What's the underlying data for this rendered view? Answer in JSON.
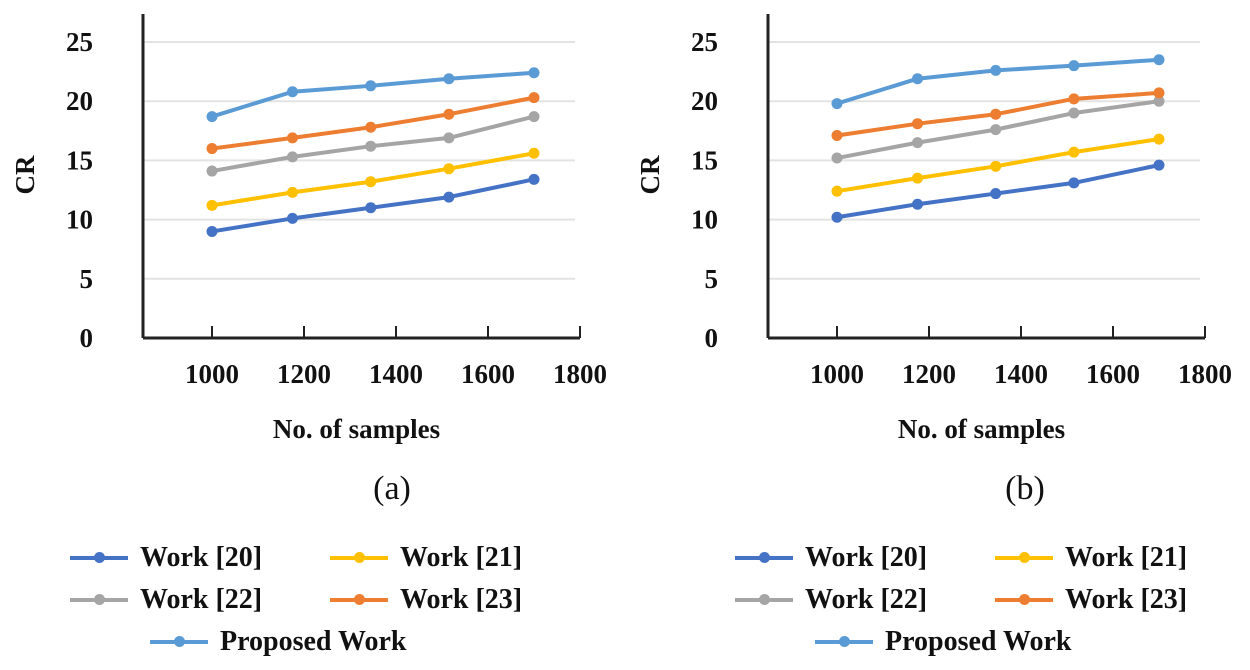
{
  "chart_data": [
    {
      "type": "line",
      "panel_label": "(a)",
      "xlabel": "No. of samples",
      "ylabel": "CR",
      "xlim": [
        850,
        1800
      ],
      "ylim": [
        0,
        25
      ],
      "xticks": [
        1000,
        1200,
        1400,
        1600,
        1800
      ],
      "yticks": [
        0,
        5,
        10,
        15,
        20,
        25
      ],
      "grid": "horizontal",
      "x": [
        1000,
        1175,
        1345,
        1515,
        1700
      ],
      "series": [
        {
          "name": "Work [20]",
          "color": "#4472C4",
          "values": [
            9.0,
            10.1,
            11.0,
            11.9,
            13.4
          ]
        },
        {
          "name": "Work [21]",
          "color": "#FFC000",
          "values": [
            11.2,
            12.3,
            13.2,
            14.3,
            15.6
          ]
        },
        {
          "name": "Work [22]",
          "color": "#A5A5A5",
          "values": [
            14.1,
            15.3,
            16.2,
            16.9,
            18.7
          ]
        },
        {
          "name": "Work [23]",
          "color": "#ED7D31",
          "values": [
            16.0,
            16.9,
            17.8,
            18.9,
            20.3
          ]
        },
        {
          "name": "Proposed Work",
          "color": "#5B9BD5",
          "values": [
            18.7,
            20.8,
            21.3,
            21.9,
            22.4
          ]
        }
      ]
    },
    {
      "type": "line",
      "panel_label": "(b)",
      "xlabel": "No. of samples",
      "ylabel": "CR",
      "xlim": [
        850,
        1800
      ],
      "ylim": [
        0,
        25
      ],
      "xticks": [
        1000,
        1200,
        1400,
        1600,
        1800
      ],
      "yticks": [
        0,
        5,
        10,
        15,
        20,
        25
      ],
      "grid": "horizontal",
      "x": [
        1000,
        1175,
        1345,
        1515,
        1700
      ],
      "series": [
        {
          "name": "Work [20]",
          "color": "#4472C4",
          "values": [
            10.2,
            11.3,
            12.2,
            13.1,
            14.6
          ]
        },
        {
          "name": "Work [21]",
          "color": "#FFC000",
          "values": [
            12.4,
            13.5,
            14.5,
            15.7,
            16.8
          ]
        },
        {
          "name": "Work [22]",
          "color": "#A5A5A5",
          "values": [
            15.2,
            16.5,
            17.6,
            19.0,
            20.0
          ]
        },
        {
          "name": "Work [23]",
          "color": "#ED7D31",
          "values": [
            17.1,
            18.1,
            18.9,
            20.2,
            20.7
          ]
        },
        {
          "name": "Proposed Work",
          "color": "#5B9BD5",
          "values": [
            19.8,
            21.9,
            22.6,
            23.0,
            23.5
          ]
        }
      ]
    }
  ],
  "legend_layout_order": [
    "Work [20]",
    "Work [21]",
    "Work [22]",
    "Work [23]",
    "Proposed Work"
  ]
}
